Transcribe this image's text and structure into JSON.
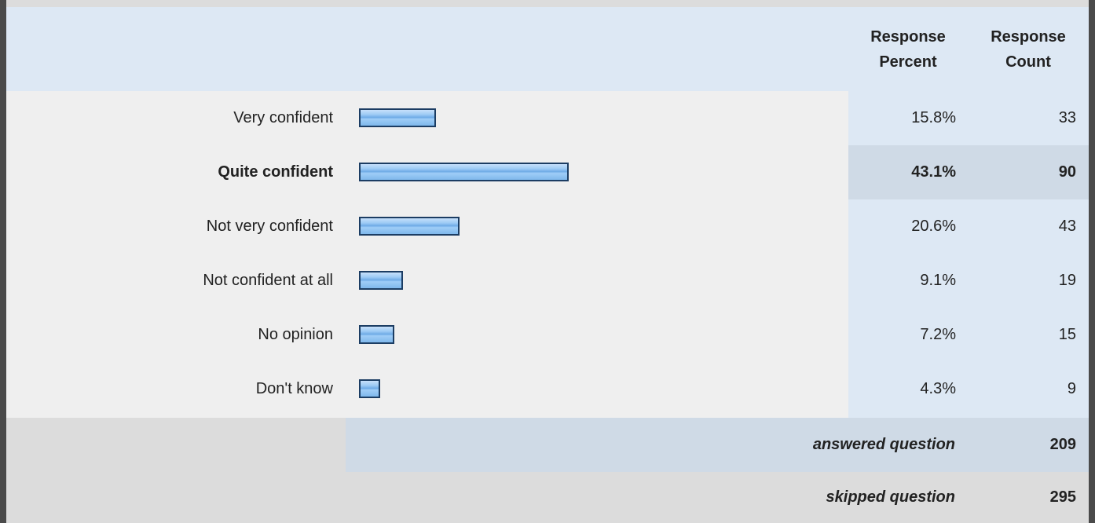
{
  "header": {
    "percent_line1": "Response",
    "percent_line2": "Percent",
    "count_line1": "Response",
    "count_line2": "Count"
  },
  "chart_data": {
    "type": "bar",
    "categories": [
      "Very confident",
      "Quite confident",
      "Not very confident",
      "Not confident at all",
      "No opinion",
      "Don't know"
    ],
    "values": [
      15.8,
      43.1,
      20.6,
      9.1,
      7.2,
      4.3
    ],
    "counts": [
      33,
      90,
      43,
      19,
      15,
      9
    ],
    "highlighted_category": "Quite confident",
    "bar_color": "#8ec2f2"
  },
  "rows": [
    {
      "label": "Very confident",
      "percent": "15.8%",
      "count": "33"
    },
    {
      "label": "Quite confident",
      "percent": "43.1%",
      "count": "90"
    },
    {
      "label": "Not very confident",
      "percent": "20.6%",
      "count": "43"
    },
    {
      "label": "Not confident at all",
      "percent": "9.1%",
      "count": "19"
    },
    {
      "label": "No opinion",
      "percent": "7.2%",
      "count": "15"
    },
    {
      "label": "Don't know",
      "percent": "4.3%",
      "count": "9"
    }
  ],
  "footer": {
    "answered_label": "answered question",
    "answered_value": "209",
    "skipped_label": "skipped question",
    "skipped_value": "295"
  }
}
